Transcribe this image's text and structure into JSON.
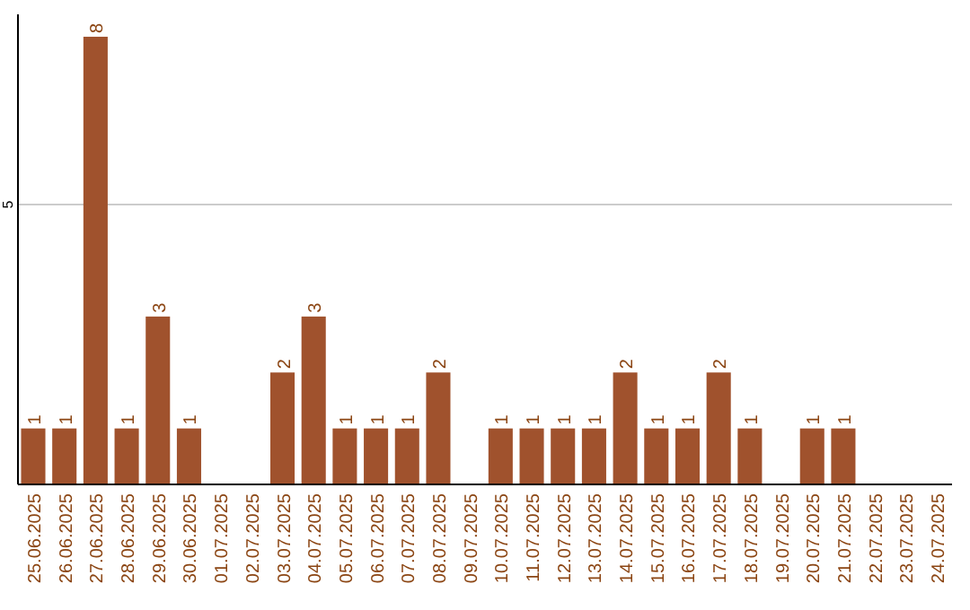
{
  "chart_data": {
    "type": "bar",
    "categories": [
      "25.06.2025",
      "26.06.2025",
      "27.06.2025",
      "28.06.2025",
      "29.06.2025",
      "30.06.2025",
      "01.07.2025",
      "02.07.2025",
      "03.07.2025",
      "04.07.2025",
      "05.07.2025",
      "06.07.2025",
      "07.07.2025",
      "08.07.2025",
      "09.07.2025",
      "10.07.2025",
      "11.07.2025",
      "12.07.2025",
      "13.07.2025",
      "14.07.2025",
      "15.07.2025",
      "16.07.2025",
      "17.07.2025",
      "18.07.2025",
      "19.07.2025",
      "20.07.2025",
      "21.07.2025",
      "22.07.2025",
      "23.07.2025",
      "24.07.2025"
    ],
    "values": [
      1,
      1,
      8,
      1,
      3,
      1,
      null,
      null,
      2,
      3,
      1,
      1,
      1,
      2,
      null,
      1,
      1,
      1,
      1,
      2,
      1,
      1,
      2,
      1,
      null,
      1,
      1,
      null,
      null,
      null
    ],
    "color": "#a0522d",
    "ylim": [
      0,
      8.4
    ],
    "yticks": [
      5
    ],
    "grid": "y",
    "data_labels": true
  }
}
